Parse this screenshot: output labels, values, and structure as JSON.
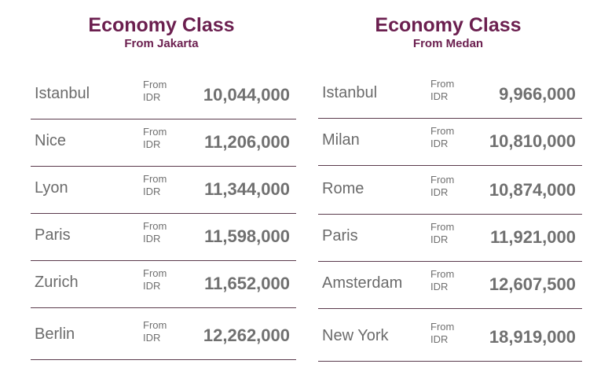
{
  "jakarta": {
    "title": "Economy Class",
    "subtitle": "From Jakarta",
    "rows": [
      {
        "city": "Istanbul",
        "from": "From",
        "currency": "IDR",
        "price": "10,044,000"
      },
      {
        "city": "Nice",
        "from": "From",
        "currency": "IDR",
        "price": "11,206,000"
      },
      {
        "city": "Lyon",
        "from": "From",
        "currency": "IDR",
        "price": "11,344,000"
      },
      {
        "city": "Paris",
        "from": "From",
        "currency": "IDR",
        "price": "11,598,000"
      },
      {
        "city": "Zurich",
        "from": "From",
        "currency": "IDR",
        "price": "11,652,000"
      },
      {
        "city": "Berlin",
        "from": "From",
        "currency": "IDR",
        "price": "12,262,000"
      }
    ]
  },
  "medan": {
    "title": "Economy Class",
    "subtitle": "From Medan",
    "rows": [
      {
        "city": "Istanbul",
        "from": "From",
        "currency": "IDR",
        "price": "9,966,000"
      },
      {
        "city": "Milan",
        "from": "From",
        "currency": "IDR",
        "price": "10,810,000"
      },
      {
        "city": "Rome",
        "from": "From",
        "currency": "IDR",
        "price": "10,874,000"
      },
      {
        "city": "Paris",
        "from": "From",
        "currency": "IDR",
        "price": "11,921,000"
      },
      {
        "city": "Amsterdam",
        "from": "From",
        "currency": "IDR",
        "price": "12,607,500"
      },
      {
        "city": "New York",
        "from": "From",
        "currency": "IDR",
        "price": "18,919,000"
      }
    ]
  }
}
